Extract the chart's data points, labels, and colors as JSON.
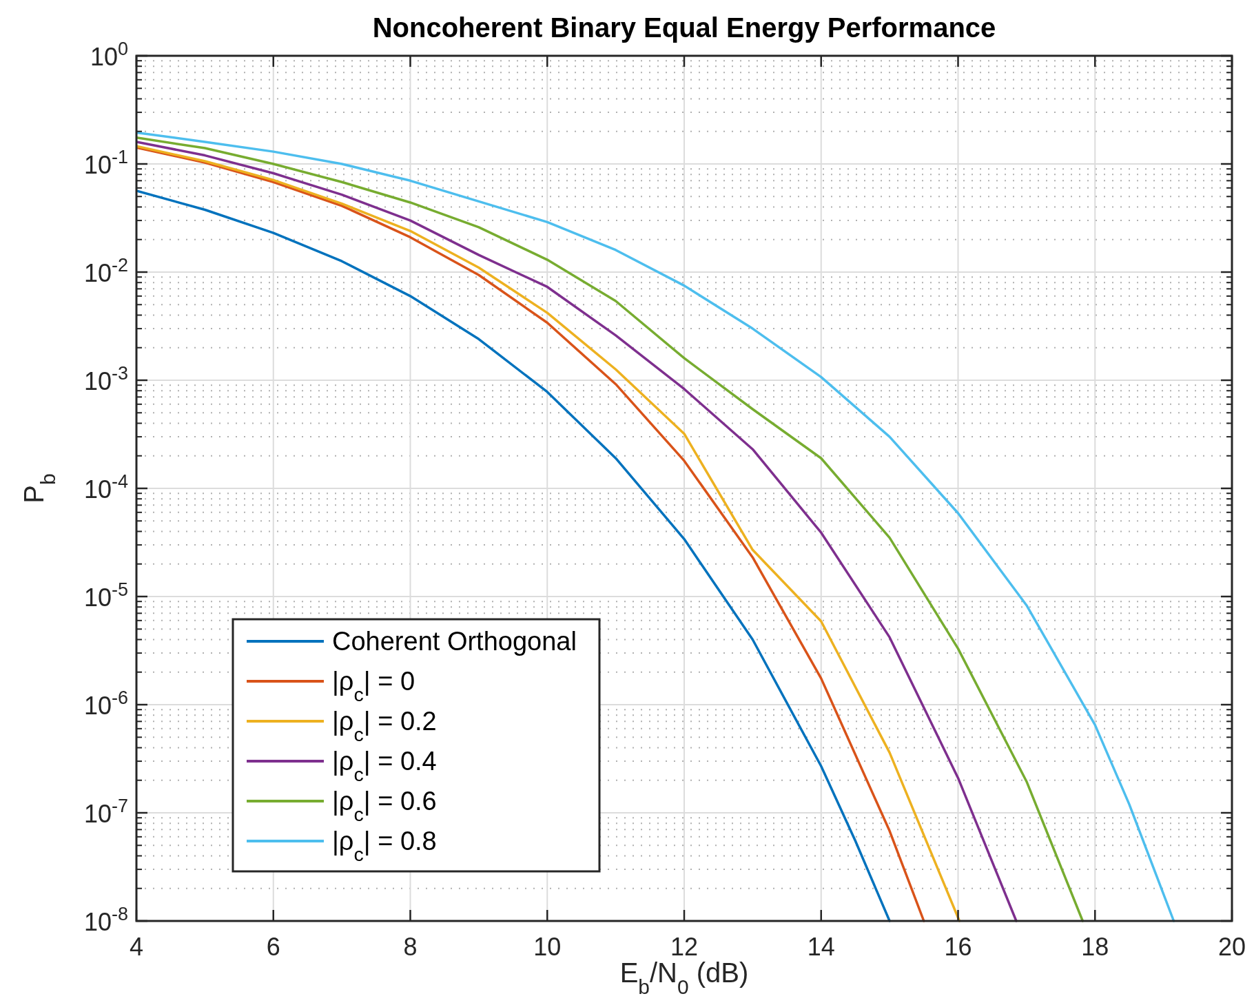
{
  "chart_data": {
    "type": "line",
    "title": "Noncoherent Binary Equal Energy Performance",
    "xlabel": "E$_{b}$/N$_{0}$ (dB)",
    "ylabel": "P$_{b}$",
    "log": "y",
    "grid": true,
    "legend": "bottom left",
    "line_style": "solid",
    "marker": "none",
    "xlim": [
      4,
      20
    ],
    "xticks": [
      4,
      6,
      8,
      10,
      12,
      14,
      16,
      18,
      20
    ],
    "ylim": [
      1e-08,
      1
    ],
    "yticks": [
      {
        "value": 1e-08,
        "label": "10$^{-8}$"
      },
      {
        "value": 1e-07,
        "label": "10$^{-7}$"
      },
      {
        "value": 1e-06,
        "label": "10$^{-6}$"
      },
      {
        "value": 1e-05,
        "label": "10$^{-5}$"
      },
      {
        "value": 0.0001,
        "label": "10$^{-4}$"
      },
      {
        "value": 0.001,
        "label": "10$^{-3}$"
      },
      {
        "value": 0.01,
        "label": "10$^{-2}$"
      },
      {
        "value": 0.1,
        "label": "10$^{-1}$"
      },
      {
        "value": 1,
        "label": "10$^{0}$"
      }
    ],
    "series": [
      {
        "name": "Coherent Orthogonal",
        "color": "#0072bd",
        "x": [
          4,
          5,
          6,
          7,
          8,
          9,
          10,
          11,
          12,
          13,
          14,
          14.5,
          15
        ],
        "values": [
          0.0565,
          0.0377,
          0.023,
          0.0126,
          0.006,
          0.0024,
          0.00078,
          0.00019,
          3.4e-05,
          4e-06,
          2.7e-07,
          5.5e-08,
          1e-08
        ]
      },
      {
        "name": "|ρ$_{c}$| = 0",
        "color": "#d95319",
        "x": [
          4,
          5,
          6,
          7,
          8,
          9,
          10,
          11,
          12,
          13,
          14,
          15,
          15.5
        ],
        "values": [
          0.142,
          0.103,
          0.068,
          0.041,
          0.021,
          0.0094,
          0.0034,
          0.00092,
          0.00018,
          2.3e-05,
          1.75e-06,
          6.8e-08,
          1e-08
        ]
      },
      {
        "name": "|ρ$_{c}$| = 0.2",
        "color": "#edb120",
        "x": [
          4,
          5,
          6,
          7,
          8,
          9,
          10,
          11,
          12,
          13,
          14,
          15,
          16.02
        ],
        "values": [
          0.146,
          0.106,
          0.071,
          0.043,
          0.024,
          0.011,
          0.0042,
          0.00126,
          0.00032,
          2.7e-05,
          5.9e-06,
          3.6e-07,
          1e-08
        ]
      },
      {
        "name": "|ρ$_{c}$| = 0.4",
        "color": "#7e2f8e",
        "x": [
          4,
          5,
          6,
          7,
          8,
          9,
          10,
          11,
          12,
          13,
          14,
          15,
          16,
          16.85
        ],
        "values": [
          0.16,
          0.12,
          0.082,
          0.052,
          0.03,
          0.0144,
          0.0073,
          0.0026,
          0.00083,
          0.00023,
          3.9e-05,
          4.2e-06,
          2.1e-07,
          1e-08
        ]
      },
      {
        "name": "|ρ$_{c}$| = 0.6",
        "color": "#77ac30",
        "x": [
          4,
          5,
          6,
          7,
          8,
          9,
          10,
          11,
          12,
          13,
          14,
          15,
          16,
          17,
          17.82
        ],
        "values": [
          0.175,
          0.14,
          0.1,
          0.068,
          0.044,
          0.026,
          0.013,
          0.0054,
          0.0016,
          0.00054,
          0.00019,
          3.5e-05,
          3.3e-06,
          1.95e-07,
          1e-08
        ]
      },
      {
        "name": "|ρ$_{c}$| = 0.8",
        "color": "#4dbeee",
        "x": [
          4,
          5,
          6,
          7,
          8,
          9,
          10,
          11,
          12,
          13,
          14,
          15,
          16,
          17,
          18,
          18.5,
          19.15
        ],
        "values": [
          0.195,
          0.16,
          0.13,
          0.1,
          0.07,
          0.045,
          0.029,
          0.016,
          0.0075,
          0.003,
          0.00107,
          0.0003,
          5.9e-05,
          8.3e-06,
          6.5e-07,
          1.2e-07,
          1e-08
        ]
      }
    ]
  }
}
